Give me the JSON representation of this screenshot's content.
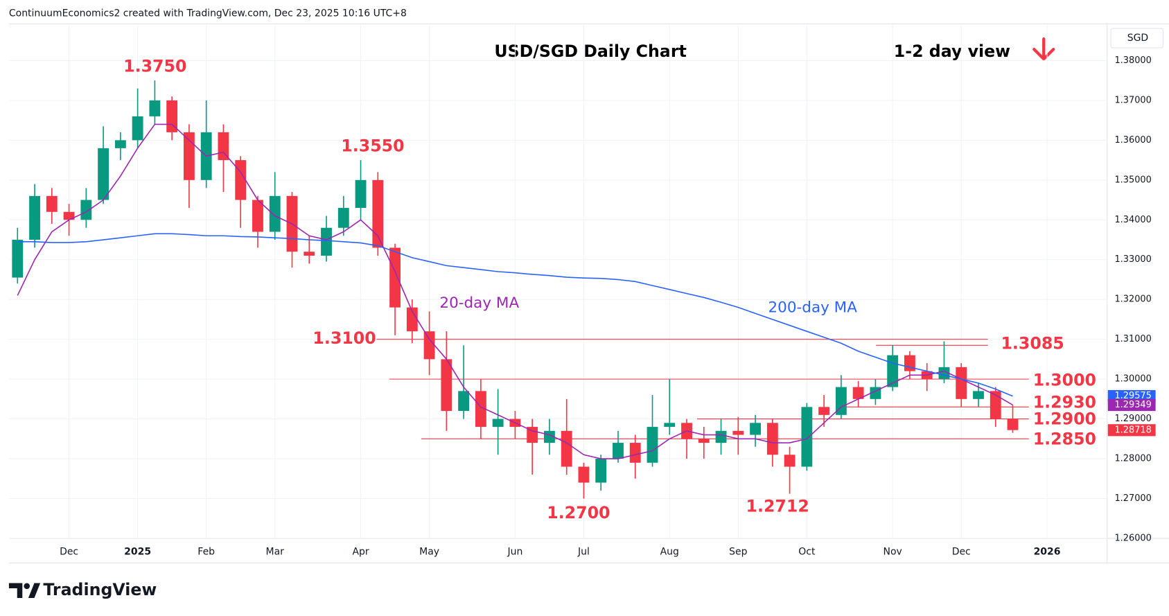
{
  "header": "ContinuumEconomics2 created with TradingView.com, Dec 23, 2025 10:16 UTC+8",
  "brand": "TradingView",
  "chart_data": {
    "type": "candlestick",
    "title": "USD/SGD Daily Chart",
    "subtitle": "1-2 day view",
    "currency": "SGD",
    "categories": [
      null,
      null,
      null,
      "Dec",
      null,
      null,
      null,
      "2025",
      null,
      null,
      null,
      "Feb",
      null,
      null,
      null,
      "Mar",
      null,
      null,
      null,
      null,
      "Apr",
      null,
      null,
      null,
      "May",
      null,
      null,
      null,
      null,
      "Jun",
      null,
      null,
      null,
      "Jul",
      null,
      null,
      null,
      null,
      "Aug",
      null,
      null,
      null,
      "Sep",
      null,
      null,
      null,
      "Oct",
      null,
      null,
      null,
      null,
      "Nov",
      null,
      null,
      null,
      "Dec",
      null,
      null,
      null,
      null,
      "2026",
      null,
      null,
      null
    ],
    "open": [
      1.3255,
      1.335,
      1.346,
      1.342,
      1.34,
      1.345,
      1.358,
      1.36,
      1.366,
      1.37,
      1.362,
      1.35,
      1.362,
      1.355,
      1.345,
      1.337,
      1.346,
      1.332,
      1.331,
      1.338,
      1.343,
      1.35,
      1.333,
      1.318,
      1.312,
      1.305,
      1.292,
      1.297,
      1.288,
      1.29,
      1.288,
      1.284,
      1.287,
      1.278,
      1.274,
      1.28,
      1.284,
      1.279,
      1.288,
      1.289,
      1.285,
      1.284,
      1.287,
      1.286,
      1.289,
      1.281,
      1.278,
      1.293,
      1.291,
      1.298,
      1.295,
      1.298,
      1.306,
      1.302,
      1.3,
      1.303,
      1.295,
      1.297,
      1.29,
      null,
      null,
      null,
      null,
      null
    ],
    "high": [
      1.338,
      1.349,
      1.348,
      1.344,
      1.348,
      1.3635,
      1.362,
      1.373,
      1.375,
      1.371,
      1.364,
      1.37,
      1.364,
      1.356,
      1.346,
      1.352,
      1.347,
      1.336,
      1.341,
      1.346,
      1.355,
      1.352,
      1.334,
      1.32,
      1.317,
      1.312,
      1.3085,
      1.3,
      1.2975,
      1.292,
      1.29,
      1.29,
      1.295,
      1.279,
      1.281,
      1.287,
      1.286,
      1.296,
      1.3,
      1.29,
      1.288,
      1.29,
      1.2905,
      1.291,
      1.29,
      1.283,
      1.294,
      1.296,
      1.301,
      1.2995,
      1.3,
      1.3085,
      1.307,
      1.304,
      1.3095,
      1.304,
      1.299,
      1.298,
      1.2935,
      null,
      null,
      null,
      null,
      null
    ],
    "low": [
      1.324,
      1.333,
      1.339,
      1.336,
      1.338,
      1.344,
      1.355,
      1.358,
      1.364,
      1.36,
      1.343,
      1.348,
      1.347,
      1.338,
      1.333,
      1.335,
      1.328,
      1.329,
      1.3295,
      1.336,
      1.34,
      1.331,
      1.311,
      1.309,
      1.301,
      1.287,
      1.29,
      1.285,
      1.281,
      1.285,
      1.276,
      1.281,
      1.276,
      1.27,
      1.272,
      1.279,
      1.275,
      1.278,
      1.286,
      1.28,
      1.28,
      1.281,
      1.281,
      1.283,
      1.278,
      1.2712,
      1.277,
      1.288,
      1.29,
      1.293,
      1.2935,
      1.297,
      1.3,
      1.297,
      1.299,
      1.293,
      1.293,
      1.288,
      1.2865,
      null,
      null,
      null,
      null,
      null
    ],
    "close": [
      1.335,
      1.346,
      1.342,
      1.34,
      1.345,
      1.358,
      1.36,
      1.366,
      1.37,
      1.362,
      1.35,
      1.362,
      1.355,
      1.345,
      1.337,
      1.346,
      1.332,
      1.331,
      1.338,
      1.343,
      1.35,
      1.333,
      1.318,
      1.312,
      1.305,
      1.292,
      1.297,
      1.288,
      1.29,
      1.288,
      1.284,
      1.287,
      1.278,
      1.274,
      1.28,
      1.284,
      1.279,
      1.288,
      1.289,
      1.285,
      1.284,
      1.287,
      1.286,
      1.289,
      1.281,
      1.278,
      1.293,
      1.291,
      1.298,
      1.295,
      1.298,
      1.306,
      1.302,
      1.3,
      1.303,
      1.295,
      1.297,
      1.29,
      1.2872,
      null,
      null,
      null,
      null,
      null
    ],
    "up_color": "#089981",
    "down_color": "#f23645",
    "series": [
      {
        "name": "20-day MA",
        "color": "#9c27b0",
        "values": [
          1.321,
          1.33,
          1.337,
          1.34,
          1.342,
          1.345,
          1.351,
          1.358,
          1.364,
          1.364,
          1.36,
          1.356,
          1.357,
          1.352,
          1.345,
          1.341,
          1.339,
          1.336,
          1.335,
          1.337,
          1.34,
          1.336,
          1.327,
          1.317,
          1.31,
          1.305,
          1.298,
          1.293,
          1.291,
          1.289,
          1.287,
          1.286,
          1.284,
          1.281,
          1.28,
          1.28,
          1.281,
          1.282,
          1.285,
          1.287,
          1.286,
          1.286,
          1.285,
          1.285,
          1.284,
          1.284,
          1.285,
          1.289,
          1.293,
          1.295,
          1.297,
          1.299,
          1.301,
          1.301,
          1.302,
          1.3,
          1.298,
          1.296,
          1.2935,
          null,
          null,
          null,
          null,
          null
        ]
      },
      {
        "name": "200-day MA",
        "color": "#2962ff",
        "values": [
          1.3345,
          1.3345,
          1.3343,
          1.3343,
          1.3345,
          1.335,
          1.3355,
          1.336,
          1.3365,
          1.3365,
          1.3363,
          1.336,
          1.336,
          1.3358,
          1.3357,
          1.3355,
          1.3353,
          1.335,
          1.3348,
          1.3345,
          1.3342,
          1.3335,
          1.332,
          1.3305,
          1.3295,
          1.3285,
          1.328,
          1.3275,
          1.327,
          1.3267,
          1.3263,
          1.326,
          1.3256,
          1.3254,
          1.3253,
          1.325,
          1.3245,
          1.3235,
          1.3225,
          1.3215,
          1.3205,
          1.3193,
          1.318,
          1.3165,
          1.315,
          1.3135,
          1.312,
          1.3105,
          1.309,
          1.307,
          1.3055,
          1.304,
          1.303,
          1.302,
          1.301,
          1.3,
          1.299,
          1.2975,
          1.2957,
          null,
          null,
          null,
          null,
          null
        ]
      }
    ],
    "ylim": [
      1.26,
      1.3892
    ],
    "yticks": [
      {
        "value": 1.26,
        "label": "1.26000"
      },
      {
        "value": 1.27,
        "label": "1.27000"
      },
      {
        "value": 1.28,
        "label": "1.28000"
      },
      {
        "value": 1.29,
        "label": "1.29000"
      },
      {
        "value": 1.3,
        "label": "1.30000"
      },
      {
        "value": 1.31,
        "label": "1.31000"
      },
      {
        "value": 1.32,
        "label": "1.32000"
      },
      {
        "value": 1.33,
        "label": "1.33000"
      },
      {
        "value": 1.34,
        "label": "1.34000"
      },
      {
        "value": 1.35,
        "label": "1.35000"
      },
      {
        "value": 1.36,
        "label": "1.36000"
      },
      {
        "value": 1.37,
        "label": "1.37000"
      },
      {
        "value": 1.38,
        "label": "1.38000"
      }
    ],
    "grid": true,
    "levels": [
      {
        "value": 1.31,
        "label": "1.3100"
      },
      {
        "value": 1.3085,
        "label": "1.3085"
      },
      {
        "value": 1.3,
        "label": "1.3000"
      },
      {
        "value": 1.293,
        "label": "1.2930"
      },
      {
        "value": 1.29,
        "label": "1.2900"
      },
      {
        "value": 1.285,
        "label": "1.2850"
      }
    ],
    "annotations": [
      {
        "value": 1.375,
        "label": "1.3750"
      },
      {
        "value": 1.355,
        "label": "1.3550"
      },
      {
        "value": 1.27,
        "label": "1.2700"
      },
      {
        "value": 1.2712,
        "label": "1.2712"
      }
    ],
    "price_tags": [
      {
        "value": 1.29575,
        "label": "1.29575",
        "color": "#2962ff"
      },
      {
        "value": 1.29349,
        "label": "1.29349",
        "color": "#9c27b0"
      },
      {
        "value": 1.28718,
        "label": "1.28718",
        "color": "#f23645"
      }
    ]
  }
}
